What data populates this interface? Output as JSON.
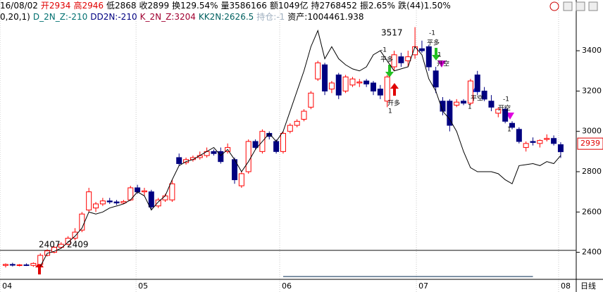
{
  "header": {
    "line1": [
      {
        "text": "16/08/02",
        "color": "#000000"
      },
      {
        "text": "开2934",
        "color": "#e00000"
      },
      {
        "text": "高2946",
        "color": "#e00000"
      },
      {
        "text": "低2868",
        "color": "#000000"
      },
      {
        "text": "收2899",
        "color": "#000000"
      },
      {
        "text": "换129.54%",
        "color": "#000000"
      },
      {
        "text": "量3586166",
        "color": "#000000"
      },
      {
        "text": "额1049亿",
        "color": "#000000"
      },
      {
        "text": "持2768452",
        "color": "#000000"
      },
      {
        "text": "振2.65%",
        "color": "#000000"
      },
      {
        "text": "跌(44)1.50%",
        "color": "#000000"
      }
    ],
    "line2": [
      {
        "text": "0,20,1)",
        "color": "#000000"
      },
      {
        "text": "D_2N_Z:-210",
        "color": "#007070"
      },
      {
        "text": "DD2N:-210",
        "color": "#000080"
      },
      {
        "text": "K_2N_Z:3204",
        "color": "#a00030"
      },
      {
        "text": "KK2N:2626.5",
        "color": "#006060"
      },
      {
        "text": "持仓:-1",
        "color": "#a0b0c0"
      },
      {
        "text": "资产:1004461.938",
        "color": "#000000"
      }
    ]
  },
  "chart_data": {
    "type": "candlestick",
    "up_color": "#ff0000",
    "down_color": "#000080",
    "line_color": "#000000",
    "xlim": [
      -0.81,
      82.24
    ],
    "ylim": [
      2266,
      3519
    ],
    "yticks": [
      2400,
      2600,
      2800,
      3000,
      3200,
      3400
    ],
    "xticks": [
      {
        "value": -0.8,
        "label": "04"
      },
      {
        "value": 18.8,
        "label": "05"
      },
      {
        "value": 39.5,
        "label": "06"
      },
      {
        "value": 59.2,
        "label": "07"
      },
      {
        "value": 79.7,
        "label": "08"
      }
    ],
    "period_label": "日线",
    "last_price": 2939,
    "candles": [
      [
        2335,
        2345,
        2325,
        2340
      ],
      [
        2340,
        2348,
        2330,
        2336
      ],
      [
        2336,
        2342,
        2330,
        2338
      ],
      [
        2338,
        2345,
        2332,
        2335
      ],
      [
        2335,
        2350,
        2328,
        2345
      ],
      [
        2340,
        2395,
        2335,
        2385
      ],
      [
        2385,
        2415,
        2380,
        2407
      ],
      [
        2400,
        2430,
        2395,
        2425
      ],
      [
        2425,
        2450,
        2418,
        2440
      ],
      [
        2440,
        2480,
        2435,
        2470
      ],
      [
        2470,
        2520,
        2460,
        2500
      ],
      [
        2510,
        2600,
        2500,
        2590
      ],
      [
        2610,
        2720,
        2600,
        2700
      ],
      [
        2620,
        2650,
        2600,
        2640
      ],
      [
        2640,
        2670,
        2630,
        2655
      ],
      [
        2655,
        2670,
        2640,
        2650
      ],
      [
        2650,
        2660,
        2635,
        2645
      ],
      [
        2645,
        2660,
        2640,
        2652
      ],
      [
        2660,
        2730,
        2655,
        2720
      ],
      [
        2720,
        2735,
        2690,
        2700
      ],
      [
        2700,
        2720,
        2680,
        2705
      ],
      [
        2700,
        2710,
        2610,
        2625
      ],
      [
        2630,
        2670,
        2620,
        2660
      ],
      [
        2660,
        2690,
        2650,
        2680
      ],
      [
        2660,
        2760,
        2650,
        2740
      ],
      [
        2870,
        2890,
        2830,
        2840
      ],
      [
        2845,
        2870,
        2835,
        2860
      ],
      [
        2860,
        2880,
        2850,
        2870
      ],
      [
        2870,
        2900,
        2860,
        2880
      ],
      [
        2880,
        2920,
        2870,
        2900
      ],
      [
        2900,
        2910,
        2880,
        2890
      ],
      [
        2900,
        2920,
        2840,
        2850
      ],
      [
        2900,
        2940,
        2890,
        2920
      ],
      [
        2860,
        2870,
        2740,
        2760
      ],
      [
        2730,
        2800,
        2720,
        2790
      ],
      [
        2800,
        2960,
        2790,
        2950
      ],
      [
        2950,
        2960,
        2910,
        2920
      ],
      [
        2900,
        3010,
        2890,
        3000
      ],
      [
        2990,
        3000,
        2960,
        2975
      ],
      [
        2950,
        2960,
        2890,
        2900
      ],
      [
        2900,
        3000,
        2890,
        2990
      ],
      [
        3000,
        3040,
        2990,
        3030
      ],
      [
        3030,
        3060,
        3020,
        3050
      ],
      [
        3060,
        3110,
        3050,
        3100
      ],
      [
        3120,
        3200,
        3110,
        3190
      ],
      [
        3260,
        3350,
        3250,
        3340
      ],
      [
        3330,
        3340,
        3180,
        3200
      ],
      [
        3210,
        3250,
        3190,
        3240
      ],
      [
        3280,
        3290,
        3160,
        3180
      ],
      [
        3200,
        3280,
        3190,
        3270
      ],
      [
        3230,
        3270,
        3220,
        3260
      ],
      [
        3240,
        3260,
        3220,
        3245
      ],
      [
        3250,
        3260,
        3220,
        3235
      ],
      [
        3240,
        3250,
        3180,
        3200
      ],
      [
        3210,
        3230,
        3160,
        3180
      ],
      [
        3150,
        3280,
        3120,
        3270
      ],
      [
        3320,
        3400,
        3300,
        3380
      ],
      [
        3370,
        3390,
        3320,
        3340
      ],
      [
        3350,
        3400,
        3320,
        3370
      ],
      [
        3380,
        3517,
        3360,
        3420
      ],
      [
        3410,
        3450,
        3390,
        3400
      ],
      [
        3420,
        3430,
        3300,
        3320
      ],
      [
        3300,
        3320,
        3190,
        3220
      ],
      [
        3150,
        3170,
        3080,
        3100
      ],
      [
        3150,
        3160,
        3000,
        3030
      ],
      [
        3130,
        3160,
        3120,
        3145
      ],
      [
        3150,
        3160,
        3130,
        3140
      ],
      [
        3140,
        3260,
        3130,
        3250
      ],
      [
        3280,
        3300,
        3180,
        3200
      ],
      [
        3200,
        3220,
        3150,
        3160
      ],
      [
        3150,
        3180,
        3100,
        3120
      ],
      [
        3090,
        3120,
        3070,
        3110
      ],
      [
        3110,
        3120,
        3040,
        3050
      ],
      [
        3040,
        3050,
        3010,
        3020
      ],
      [
        3010,
        3020,
        2940,
        2950
      ],
      [
        2920,
        2950,
        2900,
        2940
      ],
      [
        2950,
        2970,
        2930,
        2945
      ],
      [
        2940,
        2960,
        2920,
        2955
      ],
      [
        2960,
        2985,
        2950,
        2965
      ],
      [
        2965,
        2980,
        2930,
        2940
      ],
      [
        2934,
        2946,
        2868,
        2899
      ]
    ],
    "line": [
      null,
      null,
      null,
      null,
      null,
      2330,
      2395,
      2405,
      2420,
      2450,
      2480,
      2520,
      2600,
      2590,
      2600,
      2620,
      2630,
      2640,
      2660,
      2700,
      2680,
      2610,
      2650,
      2680,
      2760,
      2830,
      2850,
      2860,
      2880,
      2900,
      2920,
      2880,
      2910,
      2860,
      2800,
      2850,
      2910,
      2950,
      2990,
      2950,
      3000,
      3100,
      3200,
      3300,
      3420,
      3500,
      3360,
      3420,
      3360,
      3330,
      3310,
      3300,
      3320,
      3380,
      3400,
      3350,
      3300,
      3310,
      3320,
      3420,
      3380,
      3260,
      3200,
      3100,
      3060,
      3000,
      2900,
      2820,
      2800,
      2800,
      2800,
      2790,
      2760,
      2740,
      2830,
      2835,
      2840,
      2830,
      2850,
      2840,
      2880
    ],
    "hlines": [
      {
        "value": 2410,
        "color": "#404040"
      },
      {
        "value": 2280,
        "color": "#305070",
        "from": 40,
        "to": 76
      }
    ],
    "annotations": [
      "3517",
      "-1",
      "平多",
      "开多",
      "1",
      "-1",
      "平多",
      "1",
      "开空",
      "1",
      "平空",
      "-1",
      "开空",
      "1",
      "2407",
      "2409"
    ]
  }
}
